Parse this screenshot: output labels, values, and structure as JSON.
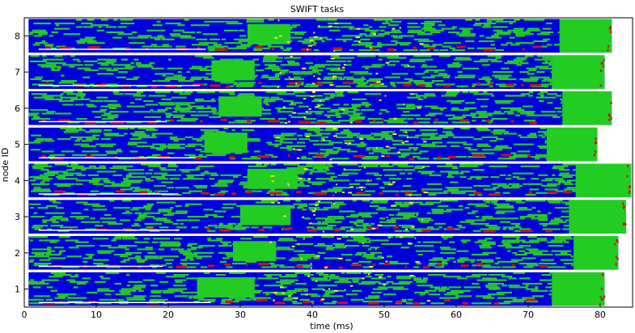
{
  "chart_data": {
    "type": "timeline",
    "title": "SWIFT tasks",
    "xlabel": "time (ms)",
    "ylabel": "node ID",
    "xlim": [
      0,
      84.5
    ],
    "ylim": [
      0.5,
      8.5
    ],
    "x_ticks": [
      0,
      10,
      20,
      30,
      40,
      50,
      60,
      70,
      80
    ],
    "y_ticks": [
      1,
      2,
      3,
      4,
      5,
      6,
      7,
      8
    ],
    "grid": false,
    "legend": "none",
    "colors": {
      "task_a": "#0000dd",
      "task_b": "#22cc22",
      "task_c": "#cc1111",
      "task_d": "#eeee22",
      "separator": "#ffffff"
    },
    "nodes": [
      {
        "id": 1,
        "end_ms": 80.6,
        "green_window": [
          24,
          32
        ]
      },
      {
        "id": 2,
        "end_ms": 82.5,
        "green_window": [
          29,
          35
        ]
      },
      {
        "id": 3,
        "end_ms": 83.6,
        "green_window": [
          30,
          37
        ]
      },
      {
        "id": 4,
        "end_ms": 84.3,
        "green_window": [
          31,
          38
        ]
      },
      {
        "id": 5,
        "end_ms": 79.6,
        "green_window": [
          25,
          31
        ]
      },
      {
        "id": 6,
        "end_ms": 81.6,
        "green_window": [
          27,
          33
        ]
      },
      {
        "id": 7,
        "end_ms": 80.6,
        "green_window": [
          26,
          32
        ]
      },
      {
        "id": 8,
        "end_ms": 81.6,
        "green_window": [
          31,
          37
        ]
      }
    ]
  }
}
